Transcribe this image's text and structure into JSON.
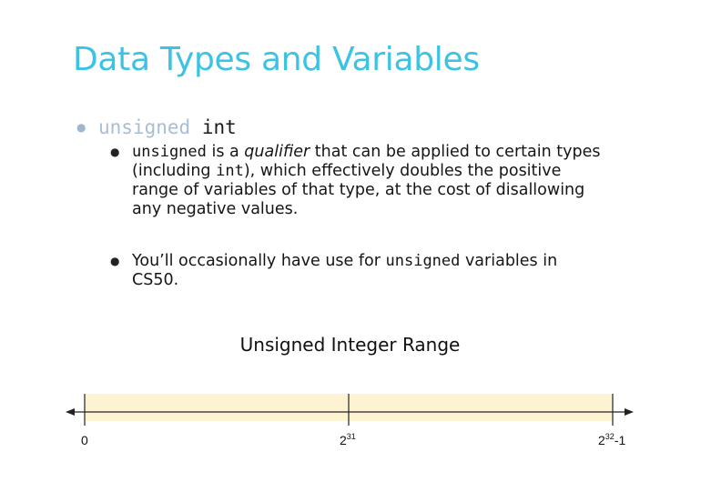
{
  "slide": {
    "title": "Data Types and Variables"
  },
  "bullet": {
    "keyword_unsigned": "unsigned",
    "keyword_int": "int"
  },
  "sub_bullets": [
    {
      "parts": [
        {
          "text": "unsigned",
          "style": "mono"
        },
        {
          "text": " is a ",
          "style": "normal"
        },
        {
          "text": "qualifier",
          "style": "italic"
        },
        {
          "text": " that can be applied to certain types (including ",
          "style": "normal"
        },
        {
          "text": "int",
          "style": "mono"
        },
        {
          "text": "), which effectively doubles the positive range of variables of that type, at the cost of disallowing any negative values.",
          "style": "normal"
        }
      ]
    },
    {
      "parts": [
        {
          "text": "You’ll occasionally have use for ",
          "style": "normal"
        },
        {
          "text": "unsigned",
          "style": "mono"
        },
        {
          "text": " variables in CS50.",
          "style": "normal"
        }
      ]
    }
  ],
  "range": {
    "caption": "Unsigned Integer Range",
    "labels": {
      "start": "0",
      "mid_base": "2",
      "mid_exp": "31",
      "end_base": "2",
      "end_exp": "32",
      "end_suffix": "-1"
    },
    "colors": {
      "band": "#fdf3d2",
      "band_line": "#e9dcae",
      "axis": "#222222"
    }
  }
}
